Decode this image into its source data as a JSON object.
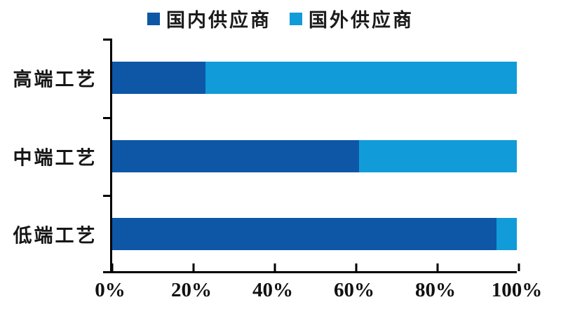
{
  "chart_data": {
    "type": "bar",
    "orientation": "horizontal",
    "stacked": true,
    "title": "",
    "categories": [
      "高端工艺",
      "中端工艺",
      "低端工艺"
    ],
    "series": [
      {
        "name": "国内供应商",
        "color": "#0d57a6",
        "values": [
          23,
          61,
          95
        ]
      },
      {
        "name": "国外供应商",
        "color": "#119bd9",
        "values": [
          77,
          39,
          5
        ]
      }
    ],
    "x_tick_labels": [
      "0%",
      "20%",
      "40%",
      "60%",
      "80%",
      "100%"
    ],
    "x_tick_values": [
      0,
      20,
      40,
      60,
      80,
      100
    ],
    "xlim": [
      0,
      100
    ],
    "grid": false,
    "legend_position": "top",
    "axis_color": "#000000",
    "background_color": "#ffffff"
  }
}
